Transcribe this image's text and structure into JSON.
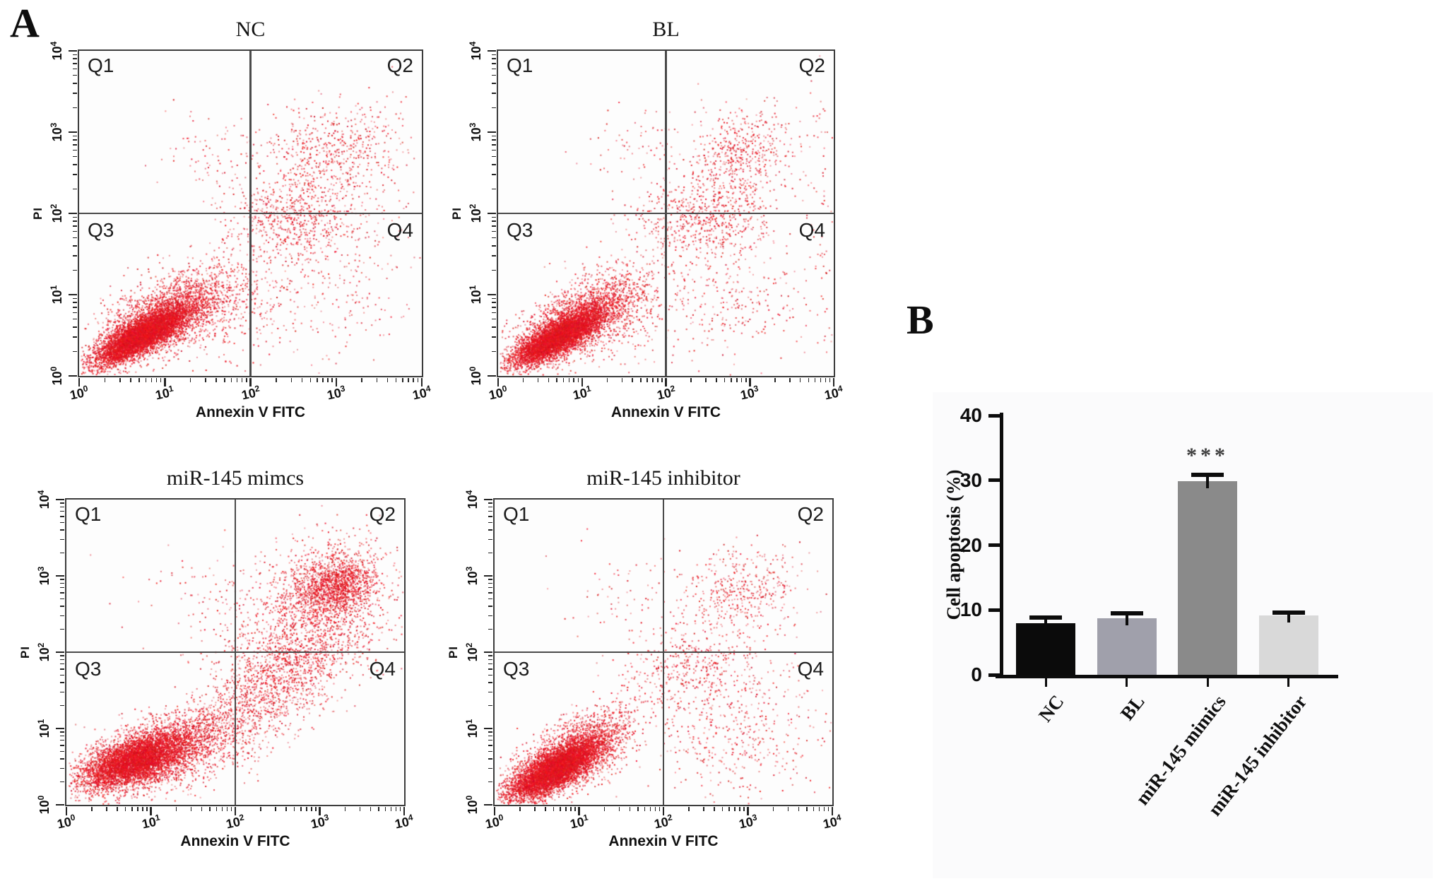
{
  "panels": {
    "a": "A",
    "b": "B"
  },
  "flow_axis": {
    "tick_base": "10",
    "tick_exponents": [
      0,
      1,
      2,
      3,
      4
    ]
  },
  "point_color_base": "#e01020",
  "chart_data": [
    {
      "type": "scatter",
      "id": "flow-nc",
      "title": "NC",
      "xlabel": "Annexin V FITC",
      "ylabel": "PI",
      "xscale": "log",
      "yscale": "log",
      "xlim_exp": [
        0,
        4
      ],
      "ylim_exp": [
        0,
        4
      ],
      "quadrant_gate_exp": [
        2,
        2
      ],
      "quadrant_labels": [
        "Q1",
        "Q2",
        "Q3",
        "Q4"
      ],
      "clusters": [
        {
          "n": 5500,
          "cx": 0.72,
          "cy": 0.5,
          "sx": 0.26,
          "sy": 0.17,
          "corr": 0.8
        },
        {
          "n": 2500,
          "cx": 0.95,
          "cy": 0.7,
          "sx": 0.38,
          "sy": 0.28,
          "corr": 0.65
        },
        {
          "n": 550,
          "cx": 1.5,
          "cy": 0.9,
          "sx": 0.45,
          "sy": 0.35,
          "corr": 0.3
        },
        {
          "n": 650,
          "cx": 2.5,
          "cy": 1.95,
          "sx": 0.38,
          "sy": 0.28,
          "corr": 0.1
        },
        {
          "n": 520,
          "cx": 2.95,
          "cy": 2.78,
          "sx": 0.38,
          "sy": 0.3,
          "corr": 0.2
        },
        {
          "n": 90,
          "cx": 1.55,
          "cy": 2.75,
          "sx": 0.38,
          "sy": 0.3,
          "corr": 0.0
        },
        {
          "n": 260,
          "cx": 2.85,
          "cy": 1.05,
          "sx": 0.55,
          "sy": 0.5,
          "corr": 0.0
        },
        {
          "n": 60,
          "cx": 3.6,
          "cy": 2.2,
          "sx": 0.3,
          "sy": 0.8,
          "corr": 0.0
        }
      ]
    },
    {
      "type": "scatter",
      "id": "flow-bl",
      "title": "BL",
      "xlabel": "Annexin V FITC",
      "ylabel": "PI",
      "xscale": "log",
      "yscale": "log",
      "xlim_exp": [
        0,
        4
      ],
      "ylim_exp": [
        0,
        4
      ],
      "quadrant_gate_exp": [
        2,
        2
      ],
      "quadrant_labels": [
        "Q1",
        "Q2",
        "Q3",
        "Q4"
      ],
      "clusters": [
        {
          "n": 5200,
          "cx": 0.7,
          "cy": 0.48,
          "sx": 0.26,
          "sy": 0.17,
          "corr": 0.8
        },
        {
          "n": 2200,
          "cx": 0.92,
          "cy": 0.68,
          "sx": 0.36,
          "sy": 0.26,
          "corr": 0.65
        },
        {
          "n": 420,
          "cx": 1.45,
          "cy": 0.85,
          "sx": 0.42,
          "sy": 0.32,
          "corr": 0.3
        },
        {
          "n": 600,
          "cx": 2.45,
          "cy": 1.95,
          "sx": 0.42,
          "sy": 0.25,
          "corr": 0.1
        },
        {
          "n": 520,
          "cx": 2.88,
          "cy": 2.72,
          "sx": 0.33,
          "sy": 0.3,
          "corr": 0.25
        },
        {
          "n": 70,
          "cx": 1.6,
          "cy": 2.8,
          "sx": 0.35,
          "sy": 0.28,
          "corr": 0.0
        },
        {
          "n": 300,
          "cx": 2.8,
          "cy": 1.0,
          "sx": 0.5,
          "sy": 0.45,
          "corr": 0.0
        },
        {
          "n": 70,
          "cx": 3.85,
          "cy": 2.0,
          "sx": 0.12,
          "sy": 0.9,
          "corr": 0.0
        }
      ]
    },
    {
      "type": "scatter",
      "id": "flow-mimics",
      "title": "miR-145 mimcs",
      "xlabel": "Annexin V FITC",
      "ylabel": "PI",
      "xscale": "log",
      "yscale": "log",
      "xlim_exp": [
        0,
        4
      ],
      "ylim_exp": [
        0,
        4
      ],
      "quadrant_gate_exp": [
        2,
        2
      ],
      "quadrant_labels": [
        "Q1",
        "Q2",
        "Q3",
        "Q4"
      ],
      "clusters": [
        {
          "n": 4200,
          "cx": 0.78,
          "cy": 0.58,
          "sx": 0.3,
          "sy": 0.17,
          "corr": 0.55
        },
        {
          "n": 2400,
          "cx": 1.05,
          "cy": 0.7,
          "sx": 0.42,
          "sy": 0.26,
          "corr": 0.55
        },
        {
          "n": 1500,
          "cx": 2.25,
          "cy": 1.35,
          "sx": 0.6,
          "sy": 0.55,
          "corr": 0.78
        },
        {
          "n": 1200,
          "cx": 3.18,
          "cy": 2.88,
          "sx": 0.22,
          "sy": 0.2,
          "corr": 0.25
        },
        {
          "n": 900,
          "cx": 3.0,
          "cy": 2.75,
          "sx": 0.42,
          "sy": 0.38,
          "corr": 0.2
        },
        {
          "n": 600,
          "cx": 2.7,
          "cy": 2.05,
          "sx": 0.45,
          "sy": 0.35,
          "corr": 0.2
        },
        {
          "n": 100,
          "cx": 1.7,
          "cy": 2.7,
          "sx": 0.42,
          "sy": 0.33,
          "corr": 0.0
        }
      ]
    },
    {
      "type": "scatter",
      "id": "flow-inhibitor",
      "title": "miR-145 inhibitor",
      "xlabel": "Annexin V FITC",
      "ylabel": "PI",
      "xscale": "log",
      "yscale": "log",
      "xlim_exp": [
        0,
        4
      ],
      "ylim_exp": [
        0,
        4
      ],
      "quadrant_gate_exp": [
        2,
        2
      ],
      "quadrant_labels": [
        "Q1",
        "Q2",
        "Q3",
        "Q4"
      ],
      "clusters": [
        {
          "n": 5800,
          "cx": 0.7,
          "cy": 0.46,
          "sx": 0.27,
          "sy": 0.2,
          "corr": 0.75
        },
        {
          "n": 1800,
          "cx": 0.95,
          "cy": 0.7,
          "sx": 0.36,
          "sy": 0.28,
          "corr": 0.6
        },
        {
          "n": 450,
          "cx": 2.35,
          "cy": 1.8,
          "sx": 0.45,
          "sy": 0.3,
          "corr": 0.1
        },
        {
          "n": 420,
          "cx": 2.95,
          "cy": 2.8,
          "sx": 0.35,
          "sy": 0.28,
          "corr": 0.2
        },
        {
          "n": 420,
          "cx": 2.9,
          "cy": 0.95,
          "sx": 0.5,
          "sy": 0.45,
          "corr": 0.0
        },
        {
          "n": 80,
          "cx": 1.65,
          "cy": 2.75,
          "sx": 0.4,
          "sy": 0.3,
          "corr": 0.0
        }
      ]
    },
    {
      "type": "bar",
      "id": "apoptosis-bar",
      "title": "",
      "categories": [
        "NC",
        "BL",
        "miR-145 mimics",
        "miR-145 inhibitor"
      ],
      "values": [
        8.0,
        8.7,
        29.9,
        9.2
      ],
      "errors": [
        0.8,
        0.8,
        0.9,
        0.4
      ],
      "bar_colors": [
        "#0b0b0b",
        "#a0a0ab",
        "#8a8a8a",
        "#d9d9d9"
      ],
      "xlabel": "",
      "ylabel": "Cell apoptosis (%)",
      "yticks": [
        0,
        10,
        20,
        30,
        40
      ],
      "ylim": [
        0,
        40
      ],
      "grid": false,
      "significance": {
        "label": "***",
        "category_index": 2
      }
    }
  ]
}
